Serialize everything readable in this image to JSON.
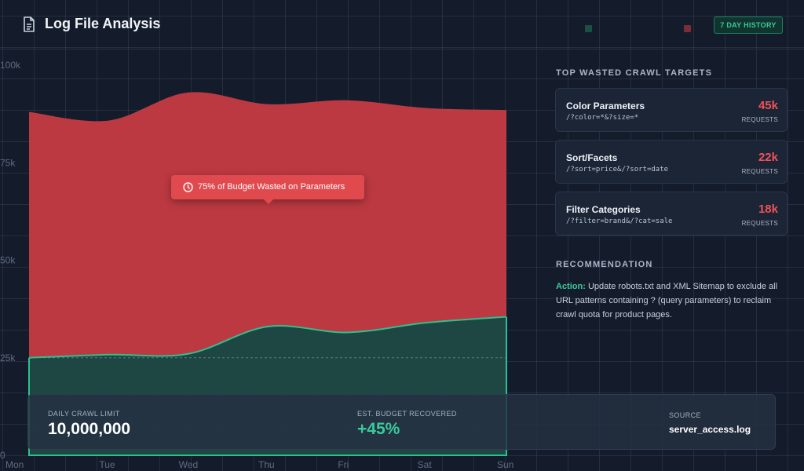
{
  "header": {
    "title": "Log File Analysis",
    "badge": "7 DAY HISTORY",
    "icon": "document-icon"
  },
  "colors": {
    "background": "#141c2b",
    "wasted": "#c53b42",
    "useful": "#1f4a45",
    "useful_line": "#2fbf8f",
    "accent_red": "#f0525a",
    "accent_green": "#3cc99c"
  },
  "chart_data": {
    "type": "area",
    "title": "",
    "xlabel": "",
    "ylabel": "",
    "x": [
      "Mon",
      "Tue",
      "Wed",
      "Thu",
      "Fri",
      "Sat",
      "Sun"
    ],
    "ylim": [
      0,
      100000
    ],
    "yticks": [
      0,
      25000,
      50000,
      75000,
      100000
    ],
    "ytick_labels": [
      "0",
      "25k",
      "50k",
      "75k",
      "100k"
    ],
    "grid": true,
    "stacked": true,
    "dashed_reference_y": 25000,
    "series": [
      {
        "key": "useful",
        "color": "#2fbf8f",
        "values": [
          25000,
          25800,
          26000,
          33000,
          31500,
          34000,
          35500
        ]
      },
      {
        "key": "wasted",
        "color": "#c53b42",
        "values": [
          63000,
          60000,
          67000,
          57000,
          59500,
          55000,
          53000
        ]
      }
    ]
  },
  "callout": {
    "text": "75% of Budget Wasted on Parameters",
    "icon": "clock-icon"
  },
  "sidebar": {
    "targets_heading": "TOP WASTED CRAWL TARGETS",
    "targets": [
      {
        "name": "Color Parameters",
        "path": "/?color=*&?size=*",
        "count": "45k",
        "unit": "REQUESTS"
      },
      {
        "name": "Sort/Facets",
        "path": "/?sort=price&/?sort=date",
        "count": "22k",
        "unit": "REQUESTS"
      },
      {
        "name": "Filter Categories",
        "path": "/?filter=brand&/?cat=sale",
        "count": "18k",
        "unit": "REQUESTS"
      }
    ],
    "reco_heading": "RECOMMENDATION",
    "reco_lead": "Action:",
    "reco_text": " Update robots.txt and XML Sitemap to exclude all URL patterns containing ? (query parameters) to reclaim crawl quota for product pages."
  },
  "footer": {
    "limit_label": "DAILY CRAWL LIMIT",
    "limit_value": "10,000,000",
    "recovered_label": "EST. BUDGET RECOVERED",
    "recovered_value": "+45%",
    "source_label": "SOURCE",
    "source_value": "server_access.log"
  }
}
